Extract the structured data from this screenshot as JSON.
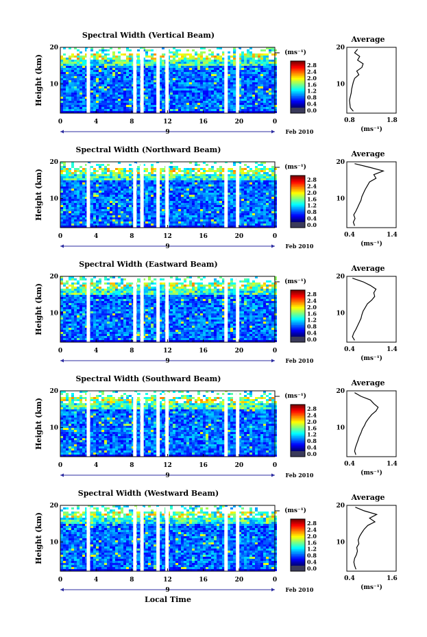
{
  "date_label": "Feb 2010",
  "day_label": "9",
  "xlabel": "Local Time",
  "unit_label": "(ms⁻¹)",
  "ylabel": "Height (km)",
  "average_label": "Average",
  "chart_data": [
    {
      "type": "heatmap",
      "title": "Spectral Width (Vertical Beam)",
      "x_ticks": [
        "0",
        "4",
        "8",
        "12",
        "16",
        "20",
        "0"
      ],
      "y_ticks": [
        "20",
        "10"
      ],
      "xlim": [
        0,
        24
      ],
      "ylim": [
        2,
        20
      ],
      "colorbar_ticks": [
        "2.8",
        "2.4",
        "2.0",
        "1.6",
        "1.2",
        "0.8",
        "0.4",
        "0.0"
      ],
      "data_gaps_hours": [
        3.1,
        8.3,
        9.1,
        10.9,
        11.9,
        18.5,
        19.8
      ],
      "average": {
        "x_ticks": [
          "0.8",
          "1.8"
        ],
        "xlim": [
          0.8,
          1.8
        ],
        "y": [
          2.5,
          3.5,
          4.5,
          5.5,
          6.5,
          7.5,
          8.5,
          9.5,
          10.5,
          11.5,
          12.5,
          13.5,
          14.5,
          15.5,
          16.5,
          17.5,
          18.5,
          19.5
        ],
        "x": [
          0.92,
          0.85,
          0.84,
          0.83,
          0.85,
          0.87,
          0.88,
          0.9,
          0.92,
          0.95,
          1.05,
          1.0,
          1.12,
          1.15,
          1.02,
          1.07,
          0.95,
          1.02
        ]
      }
    },
    {
      "type": "heatmap",
      "title": "Spectral Width (Northward Beam)",
      "x_ticks": [
        "0",
        "4",
        "8",
        "12",
        "16",
        "20",
        "0"
      ],
      "y_ticks": [
        "20",
        "10"
      ],
      "xlim": [
        0,
        24
      ],
      "ylim": [
        2,
        20
      ],
      "colorbar_ticks": [
        "2.8",
        "2.4",
        "2.0",
        "1.6",
        "1.2",
        "0.8",
        "0.4",
        "0.0"
      ],
      "data_gaps_hours": [
        3.1,
        8.3,
        9.1,
        10.9,
        11.9,
        18.5,
        19.8
      ],
      "average": {
        "x_ticks": [
          "0.4",
          "1.4"
        ],
        "xlim": [
          0.4,
          1.4
        ],
        "y": [
          2.5,
          3.5,
          4.5,
          5.5,
          6.5,
          7.5,
          8.5,
          9.5,
          10.5,
          11.5,
          12.5,
          13.5,
          14.5,
          15.5,
          16.5,
          17.5,
          18.5,
          19.5
        ],
        "x": [
          0.55,
          0.52,
          0.56,
          0.53,
          0.58,
          0.62,
          0.66,
          0.7,
          0.72,
          0.76,
          0.8,
          0.85,
          0.9,
          1.05,
          1.0,
          1.22,
          0.9,
          0.55
        ]
      }
    },
    {
      "type": "heatmap",
      "title": "Spectral Width (Eastward Beam)",
      "x_ticks": [
        "0",
        "4",
        "8",
        "12",
        "16",
        "20",
        "0"
      ],
      "y_ticks": [
        "20",
        "10"
      ],
      "xlim": [
        0,
        24
      ],
      "ylim": [
        2,
        20
      ],
      "colorbar_ticks": [
        "2.8",
        "2.4",
        "2.0",
        "1.6",
        "1.2",
        "0.8",
        "0.4",
        "0.0"
      ],
      "data_gaps_hours": [
        3.1,
        8.3,
        9.1,
        10.9,
        11.9,
        18.5,
        19.8
      ],
      "average": {
        "x_ticks": [
          "0.4",
          "1.4"
        ],
        "xlim": [
          0.4,
          1.4
        ],
        "y": [
          2.5,
          3.5,
          4.5,
          5.5,
          6.5,
          7.5,
          8.5,
          9.5,
          10.5,
          11.5,
          12.5,
          13.5,
          14.5,
          15.5,
          16.5,
          17.5,
          18.5,
          19.5
        ],
        "x": [
          0.55,
          0.5,
          0.53,
          0.58,
          0.62,
          0.66,
          0.7,
          0.72,
          0.75,
          0.8,
          0.85,
          0.95,
          1.02,
          1.0,
          1.05,
          0.92,
          0.75,
          0.5
        ]
      }
    },
    {
      "type": "heatmap",
      "title": "Spectral Width (Southward Beam)",
      "x_ticks": [
        "0",
        "4",
        "8",
        "12",
        "16",
        "20",
        "0"
      ],
      "y_ticks": [
        "20",
        "10"
      ],
      "xlim": [
        0,
        24
      ],
      "ylim": [
        2,
        20
      ],
      "colorbar_ticks": [
        "2.8",
        "2.4",
        "2.0",
        "1.6",
        "1.2",
        "0.8",
        "0.4",
        "0.0"
      ],
      "data_gaps_hours": [
        3.1,
        8.3,
        9.1,
        10.9,
        11.9,
        18.5,
        19.8
      ],
      "average": {
        "x_ticks": [
          "0.4",
          "1.4"
        ],
        "xlim": [
          0.4,
          1.4
        ],
        "y": [
          2.5,
          3.5,
          4.5,
          5.5,
          6.5,
          7.5,
          8.5,
          9.5,
          10.5,
          11.5,
          12.5,
          13.5,
          14.5,
          15.5,
          16.5,
          17.5,
          18.5,
          19.5
        ],
        "x": [
          0.58,
          0.55,
          0.57,
          0.6,
          0.63,
          0.66,
          0.7,
          0.73,
          0.78,
          0.82,
          0.88,
          0.95,
          1.05,
          1.1,
          1.0,
          0.92,
          0.7,
          0.55
        ]
      }
    },
    {
      "type": "heatmap",
      "title": "Spectral Width (Westward Beam)",
      "x_ticks": [
        "0",
        "4",
        "8",
        "12",
        "16",
        "20",
        "0"
      ],
      "y_ticks": [
        "20",
        "10"
      ],
      "xlim": [
        0,
        24
      ],
      "ylim": [
        2,
        20
      ],
      "colorbar_ticks": [
        "2.8",
        "2.4",
        "2.0",
        "1.6",
        "1.2",
        "0.8",
        "0.4",
        "0.0"
      ],
      "data_gaps_hours": [
        3.1,
        8.3,
        9.1,
        10.9,
        11.9,
        18.5,
        19.8
      ],
      "average": {
        "x_ticks": [
          "0.4",
          "1.6"
        ],
        "xlim": [
          0.4,
          1.6
        ],
        "y": [
          2.5,
          3.5,
          4.5,
          5.5,
          6.5,
          7.5,
          8.5,
          9.5,
          10.5,
          11.5,
          12.5,
          13.5,
          14.5,
          15.5,
          16.5,
          17.5,
          18.5,
          19.5
        ],
        "x": [
          0.62,
          0.58,
          0.56,
          0.58,
          0.63,
          0.66,
          0.64,
          0.7,
          0.68,
          0.72,
          0.78,
          0.85,
          0.95,
          1.15,
          1.0,
          1.2,
          0.85,
          0.6
        ]
      }
    }
  ]
}
